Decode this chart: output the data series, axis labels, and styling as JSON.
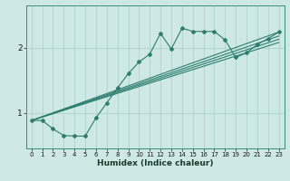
{
  "xlabel": "Humidex (Indice chaleur)",
  "ylabel": "",
  "bg_color": "#cde8e5",
  "line_color": "#2e7d6e",
  "grid_color": "#aacfcc",
  "xlim": [
    -0.5,
    23.5
  ],
  "ylim": [
    0.45,
    2.65
  ],
  "yticks": [
    1,
    2
  ],
  "xticks": [
    0,
    1,
    2,
    3,
    4,
    5,
    6,
    7,
    8,
    9,
    10,
    11,
    12,
    13,
    14,
    15,
    16,
    17,
    18,
    19,
    20,
    21,
    22,
    23
  ],
  "wavy_line_x": [
    0,
    1,
    2,
    3,
    4,
    5,
    6,
    7,
    8,
    9,
    10,
    11,
    12,
    13,
    14,
    15,
    16,
    17,
    18,
    19,
    20,
    21,
    22,
    23
  ],
  "wavy_line_y": [
    0.88,
    0.88,
    0.75,
    0.65,
    0.64,
    0.64,
    0.92,
    1.15,
    1.38,
    1.6,
    1.78,
    1.9,
    2.22,
    1.98,
    2.3,
    2.25,
    2.25,
    2.25,
    2.12,
    1.85,
    1.92,
    2.05,
    2.14,
    2.24
  ],
  "straight_lines": [
    {
      "x": [
        0,
        23
      ],
      "y": [
        0.88,
        2.24
      ]
    },
    {
      "x": [
        0,
        23
      ],
      "y": [
        0.88,
        2.18
      ]
    },
    {
      "x": [
        0,
        23
      ],
      "y": [
        0.88,
        2.13
      ]
    },
    {
      "x": [
        0,
        23
      ],
      "y": [
        0.88,
        2.08
      ]
    }
  ],
  "marker": "D",
  "marker_size": 2.0,
  "line_width": 0.8,
  "xlabel_fontsize": 6.5,
  "tick_fontsize": 5.0
}
